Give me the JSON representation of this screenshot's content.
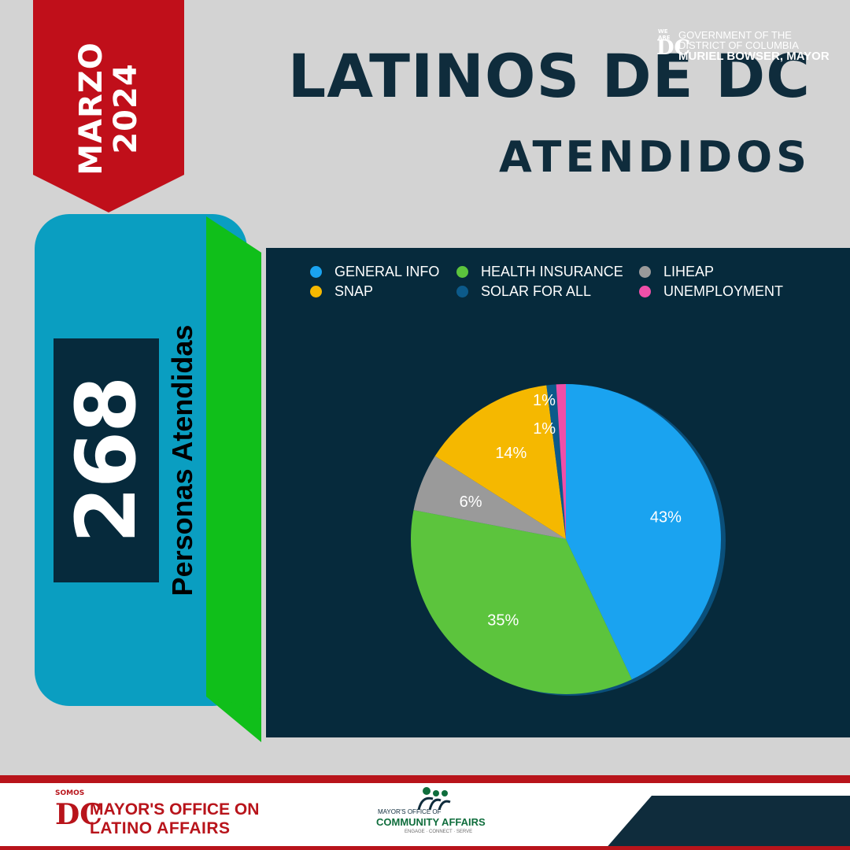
{
  "ribbon": {
    "line1": "MARZO",
    "line2": "2024",
    "color": "#c00f1a"
  },
  "header": {
    "title": "LATINOS DE DC",
    "subtitle": "ATENDIDOS"
  },
  "summary": {
    "count": "268",
    "label": "Personas Atendidas"
  },
  "chart_data": {
    "type": "pie",
    "categories": [
      "GENERAL INFO",
      "HEALTH INSURANCE",
      "LIHEAP",
      "SNAP",
      "SOLAR FOR ALL",
      "UNEMPLOYMENT"
    ],
    "values": [
      43,
      35,
      6,
      14,
      1,
      1
    ],
    "labels": [
      "43%",
      "35%",
      "6%",
      "14%",
      "1%",
      "1%"
    ],
    "colors": [
      "#1aa3f0",
      "#5cc43d",
      "#9a9a9a",
      "#f5b800",
      "#0c5a8a",
      "#f04fa8"
    ],
    "slice_order": [
      "GENERAL INFO",
      "HEALTH INSURANCE",
      "LIHEAP",
      "SNAP",
      "SOLAR FOR ALL",
      "UNEMPLOYMENT"
    ],
    "legend_position": "top"
  },
  "footer": {
    "mola": {
      "somos": "SOMOS",
      "dc": "DC",
      "line1": "MAYOR'S OFFICE ON",
      "line2": "LATINO AFFAIRS"
    },
    "moca": {
      "small": "MAYOR'S OFFICE OF",
      "big": "COMMUNITY AFFAIRS",
      "tag": "ENGAGE · CONNECT · SERVE"
    },
    "gov": {
      "weare": "WE ARE",
      "dc": "DC",
      "line1": "GOVERNMENT OF THE",
      "line2": "DISTRICT OF COLUMBIA",
      "line3": "MURIEL BOWSER, MAYOR"
    }
  }
}
